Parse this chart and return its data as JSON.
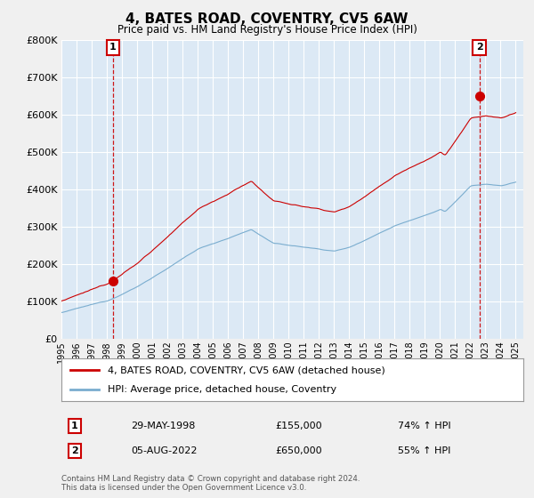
{
  "title": "4, BATES ROAD, COVENTRY, CV5 6AW",
  "subtitle": "Price paid vs. HM Land Registry's House Price Index (HPI)",
  "ylim": [
    0,
    800000
  ],
  "yticks": [
    0,
    100000,
    200000,
    300000,
    400000,
    500000,
    600000,
    700000,
    800000
  ],
  "legend_line1": "4, BATES ROAD, COVENTRY, CV5 6AW (detached house)",
  "legend_line2": "HPI: Average price, detached house, Coventry",
  "sale1_date": "29-MAY-1998",
  "sale1_price": "£155,000",
  "sale1_hpi": "74% ↑ HPI",
  "sale1_year": 1998.4,
  "sale1_value": 155000,
  "sale2_date": "05-AUG-2022",
  "sale2_price": "£650,000",
  "sale2_hpi": "55% ↑ HPI",
  "sale2_year": 2022.6,
  "sale2_value": 650000,
  "copyright_text": "Contains HM Land Registry data © Crown copyright and database right 2024.\nThis data is licensed under the Open Government Licence v3.0.",
  "line_color_red": "#cc0000",
  "line_color_blue": "#7aadcf",
  "background_color": "#f0f0f0",
  "plot_bg_color": "#dce9f5",
  "grid_color": "#ffffff"
}
